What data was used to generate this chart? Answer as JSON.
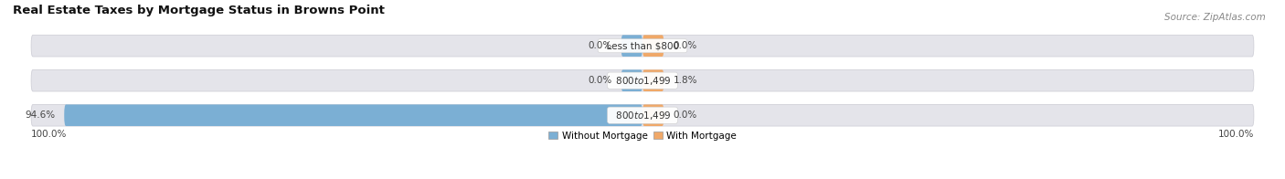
{
  "title": "Real Estate Taxes by Mortgage Status in Browns Point",
  "source": "Source: ZipAtlas.com",
  "rows": [
    {
      "label": "Less than $800",
      "without_mortgage": 0.0,
      "with_mortgage": 0.0
    },
    {
      "label": "$800 to $1,499",
      "without_mortgage": 0.0,
      "with_mortgage": 1.8
    },
    {
      "label": "$800 to $1,499",
      "without_mortgage": 94.6,
      "with_mortgage": 0.0
    }
  ],
  "x_left_label": "100.0%",
  "x_right_label": "100.0%",
  "color_without": "#7bafd4",
  "color_with": "#f0a868",
  "color_bar_bg": "#e4e4ea",
  "color_bar_border": "#d0d0d8",
  "bar_height": 0.62,
  "legend_without": "Without Mortgage",
  "legend_with": "With Mortgage",
  "title_fontsize": 9.5,
  "source_fontsize": 7.5,
  "label_fontsize": 7.5,
  "tick_fontsize": 7.5,
  "stub_size": 3.5
}
